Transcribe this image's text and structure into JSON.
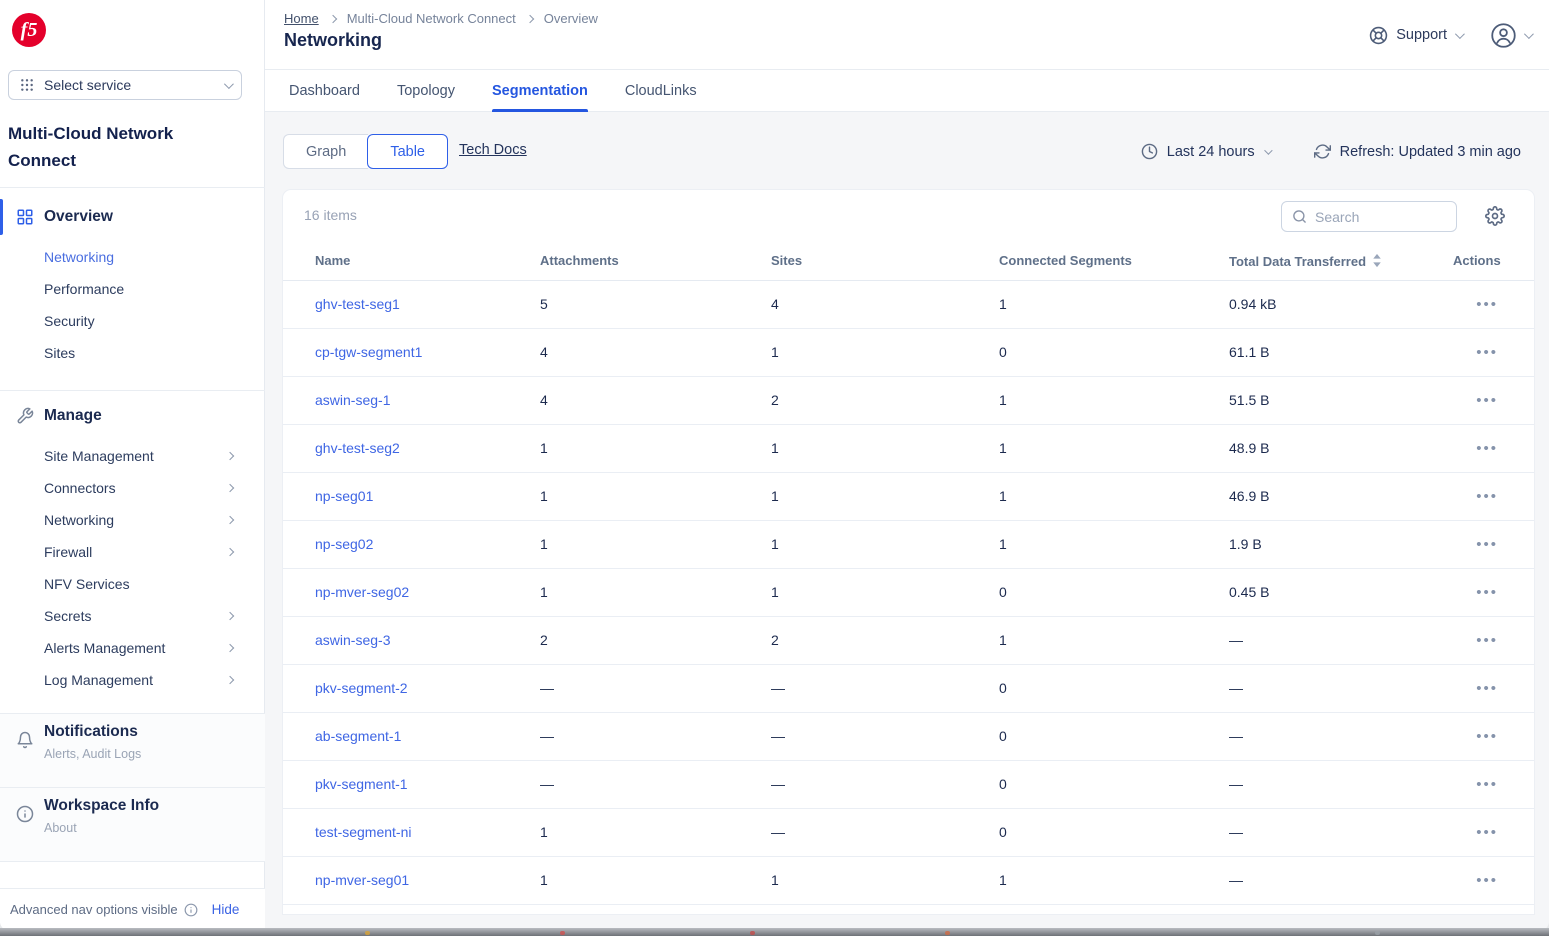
{
  "colors": {
    "brand_red": "#e4002b",
    "accent_blue": "#2e5fe8",
    "link_blue": "#3f66e4"
  },
  "brand": {
    "logo_text": "f5"
  },
  "service_selector": {
    "label": "Select service"
  },
  "sidebar": {
    "title": "Multi-Cloud Network Connect",
    "overview": {
      "label": "Overview",
      "active_item": "Networking",
      "items": [
        "Networking",
        "Performance",
        "Security",
        "Sites"
      ]
    },
    "manage": {
      "label": "Manage",
      "items": [
        {
          "label": "Site Management",
          "chevron": true
        },
        {
          "label": "Connectors",
          "chevron": true
        },
        {
          "label": "Networking",
          "chevron": true
        },
        {
          "label": "Firewall",
          "chevron": true
        },
        {
          "label": "NFV Services",
          "chevron": false
        },
        {
          "label": "Secrets",
          "chevron": true
        },
        {
          "label": "Alerts Management",
          "chevron": true
        },
        {
          "label": "Log Management",
          "chevron": true
        }
      ]
    },
    "notifications": {
      "label": "Notifications",
      "sublabel": "Alerts, Audit Logs"
    },
    "workspace": {
      "label": "Workspace Info",
      "sublabel": "About"
    },
    "footer": {
      "text": "Advanced nav options visible",
      "action": "Hide"
    }
  },
  "header": {
    "breadcrumb": [
      "Home",
      "Multi-Cloud Network Connect",
      "Overview"
    ],
    "title": "Networking",
    "support_label": "Support"
  },
  "tabs": [
    {
      "label": "Dashboard",
      "active": false
    },
    {
      "label": "Topology",
      "active": false
    },
    {
      "label": "Segmentation",
      "active": true
    },
    {
      "label": "CloudLinks",
      "active": false
    }
  ],
  "toolbar": {
    "view_graph": "Graph",
    "view_table": "Table",
    "active_view": "Table",
    "tech_docs": "Tech Docs",
    "time_range": "Last 24 hours",
    "refresh": "Refresh: Updated 3 min ago"
  },
  "table": {
    "items_count": "16 items",
    "search_placeholder": "Search",
    "columns": [
      "Name",
      "Attachments",
      "Sites",
      "Connected Segments",
      "Total Data Transferred",
      "Actions"
    ],
    "sort_column": "Total Data Transferred",
    "rows": [
      {
        "name": "ghv-test-seg1",
        "attachments": "5",
        "sites": "4",
        "connected_segments": "1",
        "total_data": "0.94 kB"
      },
      {
        "name": "cp-tgw-segment1",
        "attachments": "4",
        "sites": "1",
        "connected_segments": "0",
        "total_data": "61.1 B"
      },
      {
        "name": "aswin-seg-1",
        "attachments": "4",
        "sites": "2",
        "connected_segments": "1",
        "total_data": "51.5 B"
      },
      {
        "name": "ghv-test-seg2",
        "attachments": "1",
        "sites": "1",
        "connected_segments": "1",
        "total_data": "48.9 B"
      },
      {
        "name": "np-seg01",
        "attachments": "1",
        "sites": "1",
        "connected_segments": "1",
        "total_data": "46.9 B"
      },
      {
        "name": "np-seg02",
        "attachments": "1",
        "sites": "1",
        "connected_segments": "1",
        "total_data": "1.9 B"
      },
      {
        "name": "np-mver-seg02",
        "attachments": "1",
        "sites": "1",
        "connected_segments": "0",
        "total_data": "0.45 B"
      },
      {
        "name": "aswin-seg-3",
        "attachments": "2",
        "sites": "2",
        "connected_segments": "1",
        "total_data": "—"
      },
      {
        "name": "pkv-segment-2",
        "attachments": "—",
        "sites": "—",
        "connected_segments": "0",
        "total_data": "—"
      },
      {
        "name": "ab-segment-1",
        "attachments": "—",
        "sites": "—",
        "connected_segments": "0",
        "total_data": "—"
      },
      {
        "name": "pkv-segment-1",
        "attachments": "—",
        "sites": "—",
        "connected_segments": "0",
        "total_data": "—"
      },
      {
        "name": "test-segment-ni",
        "attachments": "1",
        "sites": "—",
        "connected_segments": "0",
        "total_data": "—"
      },
      {
        "name": "np-mver-seg01",
        "attachments": "1",
        "sites": "1",
        "connected_segments": "1",
        "total_data": "—"
      }
    ]
  }
}
